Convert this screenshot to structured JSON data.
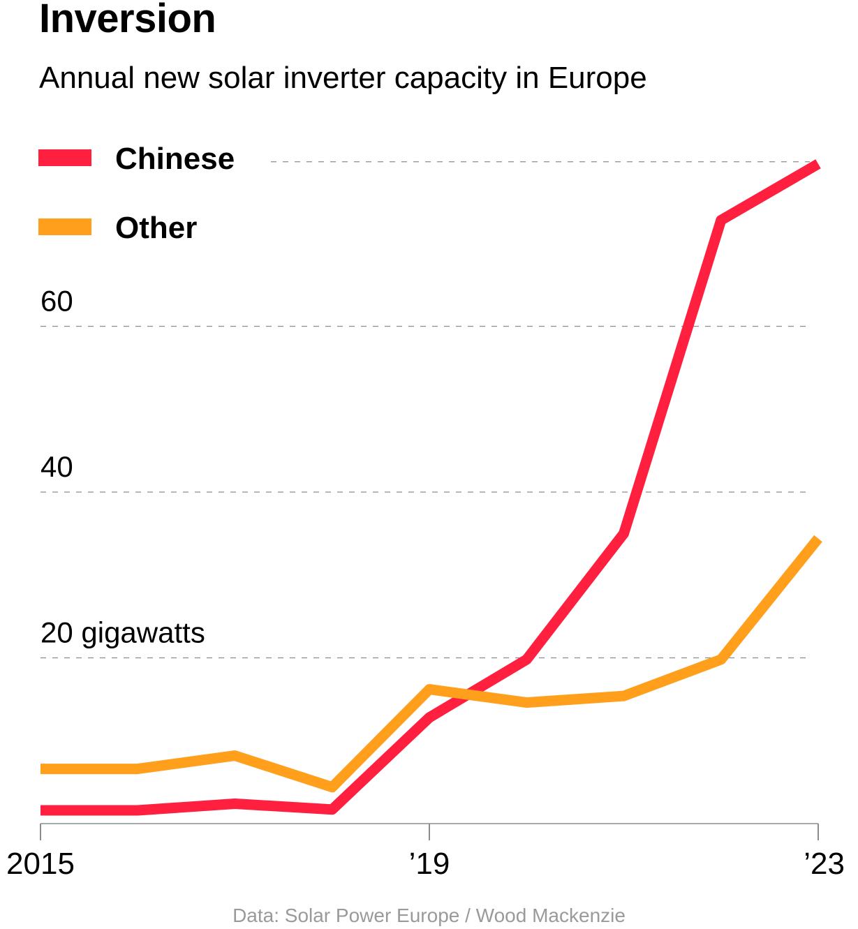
{
  "header": {
    "title": "Inversion",
    "subtitle": "Annual new solar inverter capacity in Europe"
  },
  "footer": {
    "source": "Data: Solar Power Europe / Wood Mackenzie"
  },
  "colors": {
    "chinese": "#ff1f3e",
    "other": "#ff9f1c",
    "grid": "#8c8c8c",
    "axis": "#8c8c8c"
  },
  "chart_data": {
    "type": "line",
    "title": "Inversion",
    "subtitle": "Annual new solar inverter capacity in Europe",
    "xlabel": "",
    "ylabel": "",
    "x": [
      2015,
      2016,
      2017,
      2018,
      2019,
      2020,
      2021,
      2022,
      2023
    ],
    "xlim": [
      2015,
      2023
    ],
    "ylim": [
      0,
      80
    ],
    "x_ticks": [
      {
        "value": 2015,
        "label": "2015"
      },
      {
        "value": 2019,
        "label": "’19"
      },
      {
        "value": 2023,
        "label": "’23"
      }
    ],
    "y_ticks": [
      {
        "value": 20,
        "label": "20 gigawatts"
      },
      {
        "value": 40,
        "label": "40"
      },
      {
        "value": 60,
        "label": "60"
      }
    ],
    "grid": true,
    "legend_position": "top-left",
    "series": [
      {
        "name": "Chinese",
        "color": "#ff1f3e",
        "values": [
          1.6,
          1.6,
          2.4,
          1.7,
          12.8,
          19.8,
          35.0,
          72.8,
          79.6
        ]
      },
      {
        "name": "Other",
        "color": "#ff9f1c",
        "values": [
          6.6,
          6.6,
          8.2,
          4.4,
          16.2,
          14.6,
          15.4,
          19.8,
          34.4
        ]
      }
    ]
  }
}
